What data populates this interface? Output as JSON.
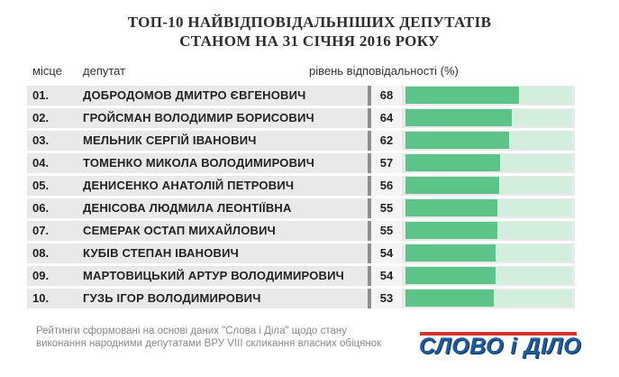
{
  "header": {
    "title_line1": "ТОП-10 НАЙВІДПОВІДАЛЬНІШИХ ДЕПУТАТІВ",
    "title_line2": "СТАНОМ НА 31 СІЧНЯ 2016 РОКУ"
  },
  "columns": {
    "rank": "місце",
    "name": "депутат",
    "value": "рівень відповідальності (%)"
  },
  "chart_data": {
    "type": "bar",
    "title": "ТОП-10 НАЙВІДПОВІДАЛЬНІШИХ ДЕПУТАТІВ СТАНОМ НА 31 СІЧНЯ 2016 РОКУ",
    "ylabel": "рівень відповідальності (%)",
    "xlabel": "",
    "ylim": [
      0,
      100
    ],
    "orientation": "horizontal",
    "colors": {
      "fill": "#5cc489",
      "track": "#d3eedd",
      "row": "#e9e9e9"
    },
    "ranks": [
      "01.",
      "02.",
      "03.",
      "04.",
      "05.",
      "06.",
      "07.",
      "08.",
      "09.",
      "10."
    ],
    "categories": [
      "ДОБРОДОМОВ ДМИТРО ЄВГЕНОВИЧ",
      "ГРОЙСМАН ВОЛОДИМИР БОРИСОВИЧ",
      "МЕЛЬНИК СЕРГІЙ ІВАНОВИЧ",
      "ТОМЕНКО МИКОЛА ВОЛОДИМИРОВИЧ",
      "ДЕНИСЕНКО АНАТОЛІЙ ПЕТРОВИЧ",
      "ДЕНІСОВА ЛЮДМИЛА ЛЕОНТІЇВНА",
      "СЕМЕРАК ОСТАП МИХАЙЛОВИЧ",
      "КУБІВ СТЕПАН ІВАНОВИЧ",
      "МАРТОВИЦЬКИЙ АРТУР ВОЛОДИМИРОВИЧ",
      "ГУЗЬ ІГОР ВОЛОДИМИРОВИЧ"
    ],
    "values": [
      68,
      64,
      62,
      57,
      56,
      55,
      55,
      54,
      54,
      53
    ]
  },
  "footer": {
    "note": "Рейтинги сформовані на основі даних \"Слова і Діла\" щодо стану виконання народними депутатами ВРУ VIII скликання власних обіцянок",
    "logo": "СЛОВО і ДІЛО"
  }
}
